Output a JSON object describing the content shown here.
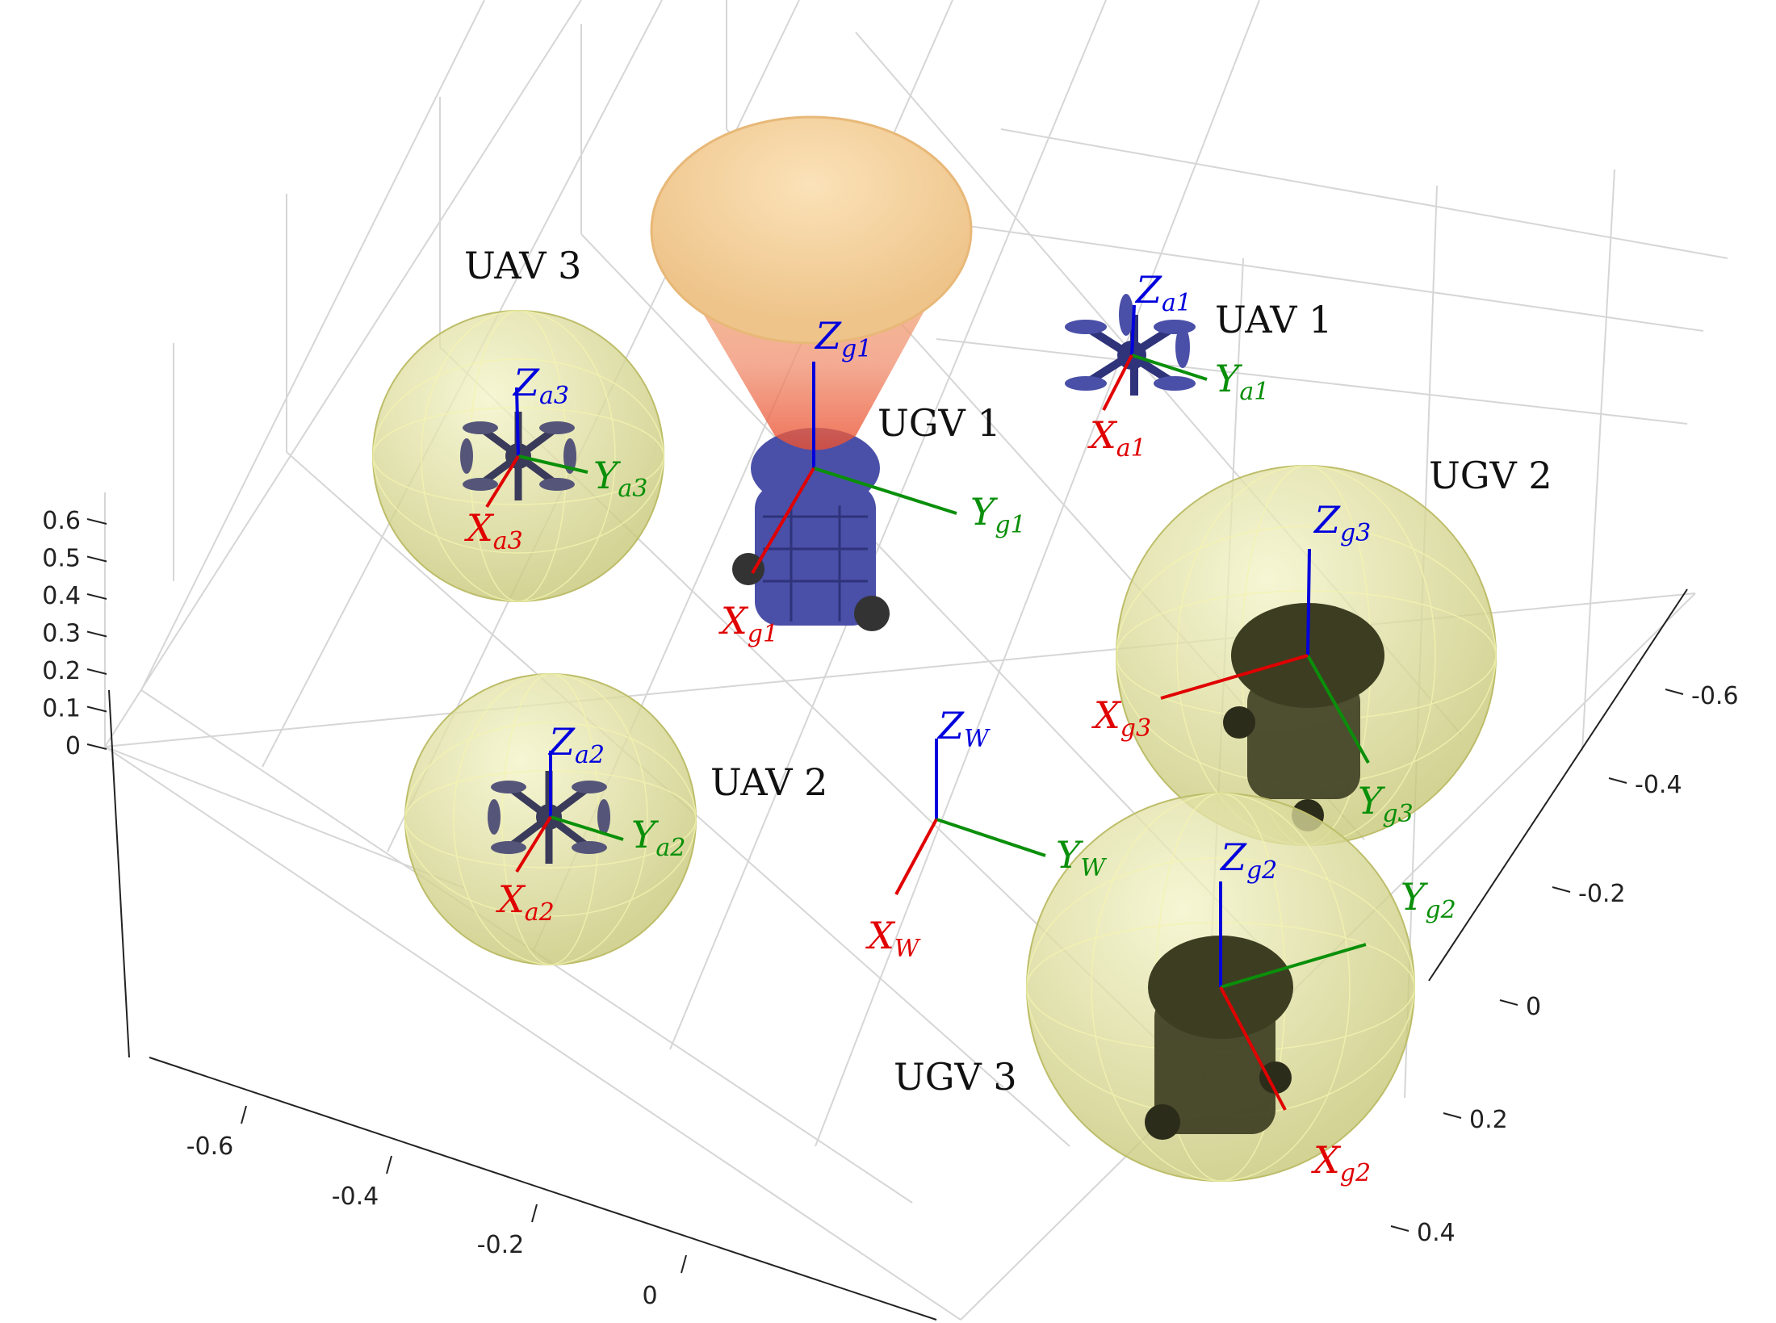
{
  "axes": {
    "z_ticks": [
      "0.6",
      "0.5",
      "0.4",
      "0.3",
      "0.2",
      "0.1",
      "0"
    ],
    "x_ticks": [
      "-0.6",
      "-0.4",
      "-0.2",
      "0"
    ],
    "y_ticks": [
      "-0.6",
      "-0.4",
      "-0.2",
      "0",
      "0.2",
      "0.4"
    ]
  },
  "vehicles": {
    "uav1": "UAV 1",
    "uav2": "UAV 2",
    "uav3": "UAV 3",
    "ugv1": "UGV 1",
    "ugv2": "UGV 2",
    "ugv3": "UGV 3"
  },
  "frames": {
    "world": {
      "x": "X",
      "x_sub": "W",
      "y": "Y",
      "y_sub": "W",
      "z": "Z",
      "z_sub": "W"
    },
    "a1": {
      "x": "X",
      "x_sub": "a1",
      "y": "Y",
      "y_sub": "a1",
      "z": "Z",
      "z_sub": "a1"
    },
    "a2": {
      "x": "X",
      "x_sub": "a2",
      "y": "Y",
      "y_sub": "a2",
      "z": "Z",
      "z_sub": "a2"
    },
    "a3": {
      "x": "X",
      "x_sub": "a3",
      "y": "Y",
      "y_sub": "a3",
      "z": "Z",
      "z_sub": "a3"
    },
    "g1": {
      "x": "X",
      "x_sub": "g1",
      "y": "Y",
      "y_sub": "g1",
      "z": "Z",
      "z_sub": "g1"
    },
    "g2": {
      "x": "X",
      "x_sub": "g2",
      "y": "Y",
      "y_sub": "g2",
      "z": "Z",
      "z_sub": "g2"
    },
    "g3": {
      "x": "X",
      "x_sub": "g3",
      "y": "Y",
      "y_sub": "g3",
      "z": "Z",
      "z_sub": "g3"
    }
  },
  "colors": {
    "x_axis": "#e00000",
    "y_axis": "#0a8f0a",
    "z_axis": "#0000dd",
    "sphere": "#d9d98a",
    "robot_blue": "#4a4fa8",
    "robot_dark": "#3d3d22",
    "cone": "#f0b070"
  }
}
